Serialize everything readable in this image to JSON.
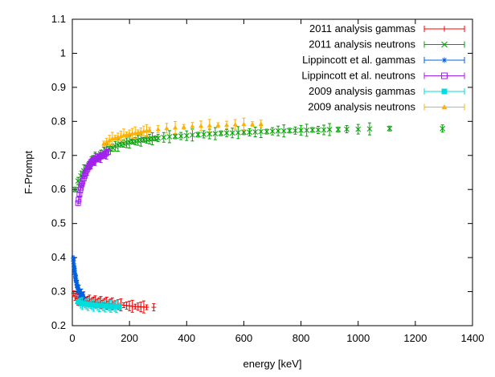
{
  "chart_data": {
    "type": "scatter",
    "title": "",
    "xlabel": "energy [keV]",
    "ylabel": "F-Prompt",
    "xlim": [
      0,
      1400
    ],
    "ylim": [
      0.2,
      1.1
    ],
    "xticks": [
      "0",
      "200",
      "400",
      "600",
      "800",
      "1000",
      "1200",
      "1400"
    ],
    "yticks": [
      "0.2",
      "0.3",
      "0.4",
      "0.5",
      "0.6",
      "0.7",
      "0.8",
      "0.9",
      "1",
      "1.1"
    ],
    "grid": false,
    "legend_position": "top-right",
    "series": [
      {
        "name": "2011 analysis gammas",
        "color": "#ff0000",
        "marker": "plus",
        "x": [
          5,
          10,
          15,
          20,
          25,
          30,
          35,
          40,
          45,
          50,
          55,
          60,
          65,
          70,
          75,
          80,
          85,
          90,
          95,
          100,
          105,
          110,
          115,
          120,
          125,
          130,
          135,
          140,
          145,
          150,
          160,
          170,
          180,
          190,
          200,
          210,
          220,
          230,
          240,
          250,
          260,
          285
        ],
        "y": [
          0.295,
          0.285,
          0.28,
          0.278,
          0.277,
          0.276,
          0.275,
          0.274,
          0.274,
          0.273,
          0.272,
          0.272,
          0.271,
          0.271,
          0.27,
          0.27,
          0.269,
          0.269,
          0.268,
          0.268,
          0.267,
          0.267,
          0.266,
          0.266,
          0.265,
          0.265,
          0.264,
          0.264,
          0.263,
          0.263,
          0.262,
          0.261,
          0.26,
          0.259,
          0.258,
          0.257,
          0.256,
          0.256,
          0.255,
          0.255,
          0.254,
          0.254
        ]
      },
      {
        "name": "2011 analysis neutrons",
        "color": "#00a000",
        "marker": "cross",
        "x": [
          10,
          20,
          30,
          40,
          50,
          60,
          70,
          80,
          90,
          100,
          110,
          120,
          130,
          140,
          150,
          160,
          170,
          180,
          190,
          200,
          210,
          220,
          230,
          240,
          250,
          260,
          270,
          280,
          290,
          300,
          320,
          340,
          360,
          380,
          400,
          420,
          440,
          460,
          480,
          500,
          520,
          540,
          560,
          580,
          600,
          620,
          640,
          660,
          680,
          700,
          720,
          740,
          760,
          780,
          800,
          820,
          840,
          860,
          880,
          900,
          930,
          960,
          1000,
          1040,
          1110,
          1295
        ],
        "y": [
          0.6,
          0.625,
          0.64,
          0.655,
          0.665,
          0.675,
          0.685,
          0.692,
          0.698,
          0.705,
          0.71,
          0.715,
          0.72,
          0.723,
          0.727,
          0.73,
          0.732,
          0.735,
          0.737,
          0.739,
          0.741,
          0.742,
          0.744,
          0.745,
          0.746,
          0.747,
          0.748,
          0.749,
          0.75,
          0.751,
          0.753,
          0.755,
          0.756,
          0.757,
          0.758,
          0.76,
          0.761,
          0.762,
          0.763,
          0.764,
          0.765,
          0.766,
          0.766,
          0.767,
          0.768,
          0.768,
          0.769,
          0.77,
          0.77,
          0.771,
          0.772,
          0.772,
          0.773,
          0.773,
          0.774,
          0.774,
          0.775,
          0.775,
          0.775,
          0.776,
          0.776,
          0.777,
          0.777,
          0.778,
          0.779,
          0.779
        ]
      },
      {
        "name": "Lippincott et al. gammas",
        "color": "#0060e0",
        "marker": "star",
        "x": [
          3,
          4,
          5,
          6,
          7,
          8,
          9,
          10,
          11,
          12,
          13,
          14,
          15,
          16,
          17,
          18,
          19,
          20,
          22,
          24,
          26,
          28,
          30,
          32,
          34,
          36,
          38,
          40
        ],
        "y": [
          0.398,
          0.39,
          0.382,
          0.375,
          0.368,
          0.362,
          0.355,
          0.35,
          0.344,
          0.339,
          0.334,
          0.33,
          0.326,
          0.322,
          0.318,
          0.315,
          0.312,
          0.309,
          0.305,
          0.301,
          0.298,
          0.295,
          0.292,
          0.29,
          0.288,
          0.286,
          0.284,
          0.282
        ]
      },
      {
        "name": "Lippincott et al. neutrons",
        "color": "#a020f0",
        "marker": "square-open",
        "x": [
          20,
          22,
          25,
          28,
          30,
          33,
          36,
          40,
          43,
          46,
          50,
          53,
          56,
          60,
          63,
          66,
          70,
          73,
          76,
          80,
          85,
          90,
          95,
          100,
          105,
          110,
          115,
          120,
          125
        ],
        "y": [
          0.56,
          0.57,
          0.585,
          0.598,
          0.605,
          0.615,
          0.625,
          0.632,
          0.64,
          0.648,
          0.655,
          0.66,
          0.665,
          0.67,
          0.675,
          0.678,
          0.68,
          0.683,
          0.686,
          0.688,
          0.69,
          0.692,
          0.695,
          0.697,
          0.699,
          0.702,
          0.705,
          0.707,
          0.71
        ]
      },
      {
        "name": "2009 analysis gammas",
        "color": "#00dddd",
        "marker": "square-filled",
        "x": [
          20,
          25,
          30,
          35,
          40,
          45,
          50,
          55,
          60,
          65,
          70,
          75,
          80,
          85,
          90,
          95,
          100,
          105,
          110,
          115,
          120,
          125,
          130,
          135,
          140,
          145,
          150,
          155,
          160,
          165
        ],
        "y": [
          0.27,
          0.268,
          0.266,
          0.265,
          0.264,
          0.263,
          0.263,
          0.262,
          0.262,
          0.261,
          0.261,
          0.26,
          0.26,
          0.26,
          0.259,
          0.259,
          0.259,
          0.258,
          0.258,
          0.258,
          0.258,
          0.257,
          0.257,
          0.257,
          0.257,
          0.257,
          0.256,
          0.256,
          0.256,
          0.256
        ]
      },
      {
        "name": "2009 analysis neutrons",
        "color": "#ffb000",
        "marker": "triangle-filled",
        "x": [
          110,
          120,
          130,
          140,
          150,
          160,
          170,
          180,
          190,
          200,
          210,
          220,
          230,
          240,
          250,
          260,
          270,
          300,
          330,
          360,
          390,
          420,
          450,
          480,
          510,
          540,
          570,
          600,
          630,
          660
        ],
        "y": [
          0.735,
          0.74,
          0.745,
          0.75,
          0.752,
          0.755,
          0.757,
          0.76,
          0.762,
          0.764,
          0.765,
          0.766,
          0.768,
          0.77,
          0.772,
          0.773,
          0.775,
          0.777,
          0.78,
          0.782,
          0.784,
          0.786,
          0.787,
          0.788,
          0.789,
          0.79,
          0.791,
          0.792,
          0.792,
          0.793
        ]
      }
    ]
  }
}
